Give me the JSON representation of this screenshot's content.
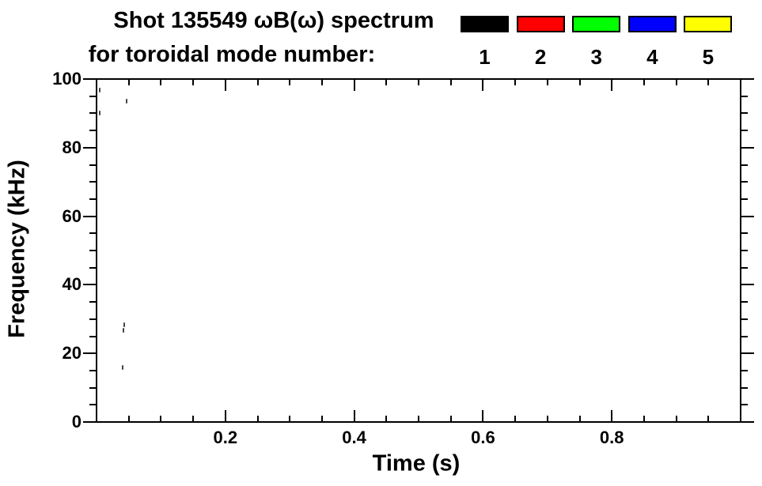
{
  "figure": {
    "background": "#ffffff",
    "text_color": "#000000"
  },
  "chart_data": {
    "type": "scatter",
    "title_line1": "Shot 135549 ωB(ω) spectrum",
    "title_line2": "for toroidal mode number:",
    "xlabel": "Time (s)",
    "ylabel": "Frequency (kHz)",
    "xlim": [
      0,
      1.0
    ],
    "ylim": [
      0,
      100
    ],
    "x_major_ticks": [
      {
        "value": 0.2,
        "label": "0.2"
      },
      {
        "value": 0.4,
        "label": "0.4"
      },
      {
        "value": 0.6,
        "label": "0.6"
      },
      {
        "value": 0.8,
        "label": "0.8"
      }
    ],
    "x_minor_step": 0.05,
    "y_major_ticks": [
      {
        "value": 0,
        "label": "0"
      },
      {
        "value": 20,
        "label": "20"
      },
      {
        "value": 40,
        "label": "40"
      },
      {
        "value": 60,
        "label": "60"
      },
      {
        "value": 80,
        "label": "80"
      },
      {
        "value": 100,
        "label": "100"
      }
    ],
    "y_minor_step": 5,
    "grid": false,
    "legend": {
      "position": "top-right",
      "entries": [
        {
          "label": "1",
          "color": "#000000"
        },
        {
          "label": "2",
          "color": "#ff0000"
        },
        {
          "label": "3",
          "color": "#00ff00"
        },
        {
          "label": "4",
          "color": "#0000ff"
        },
        {
          "label": "5",
          "color": "#ffff00"
        }
      ]
    },
    "points": [
      {
        "time_s": 0.005,
        "freq_khz": 96.8,
        "mode": 1
      },
      {
        "time_s": 0.047,
        "freq_khz": 93.5,
        "mode": 1
      },
      {
        "time_s": 0.005,
        "freq_khz": 90.1,
        "mode": 1
      },
      {
        "time_s": 0.043,
        "freq_khz": 28.3,
        "mode": 1
      },
      {
        "time_s": 0.042,
        "freq_khz": 26.7,
        "mode": 1
      },
      {
        "time_s": 0.041,
        "freq_khz": 15.9,
        "mode": 1
      }
    ],
    "point_render_color": "#454545"
  }
}
